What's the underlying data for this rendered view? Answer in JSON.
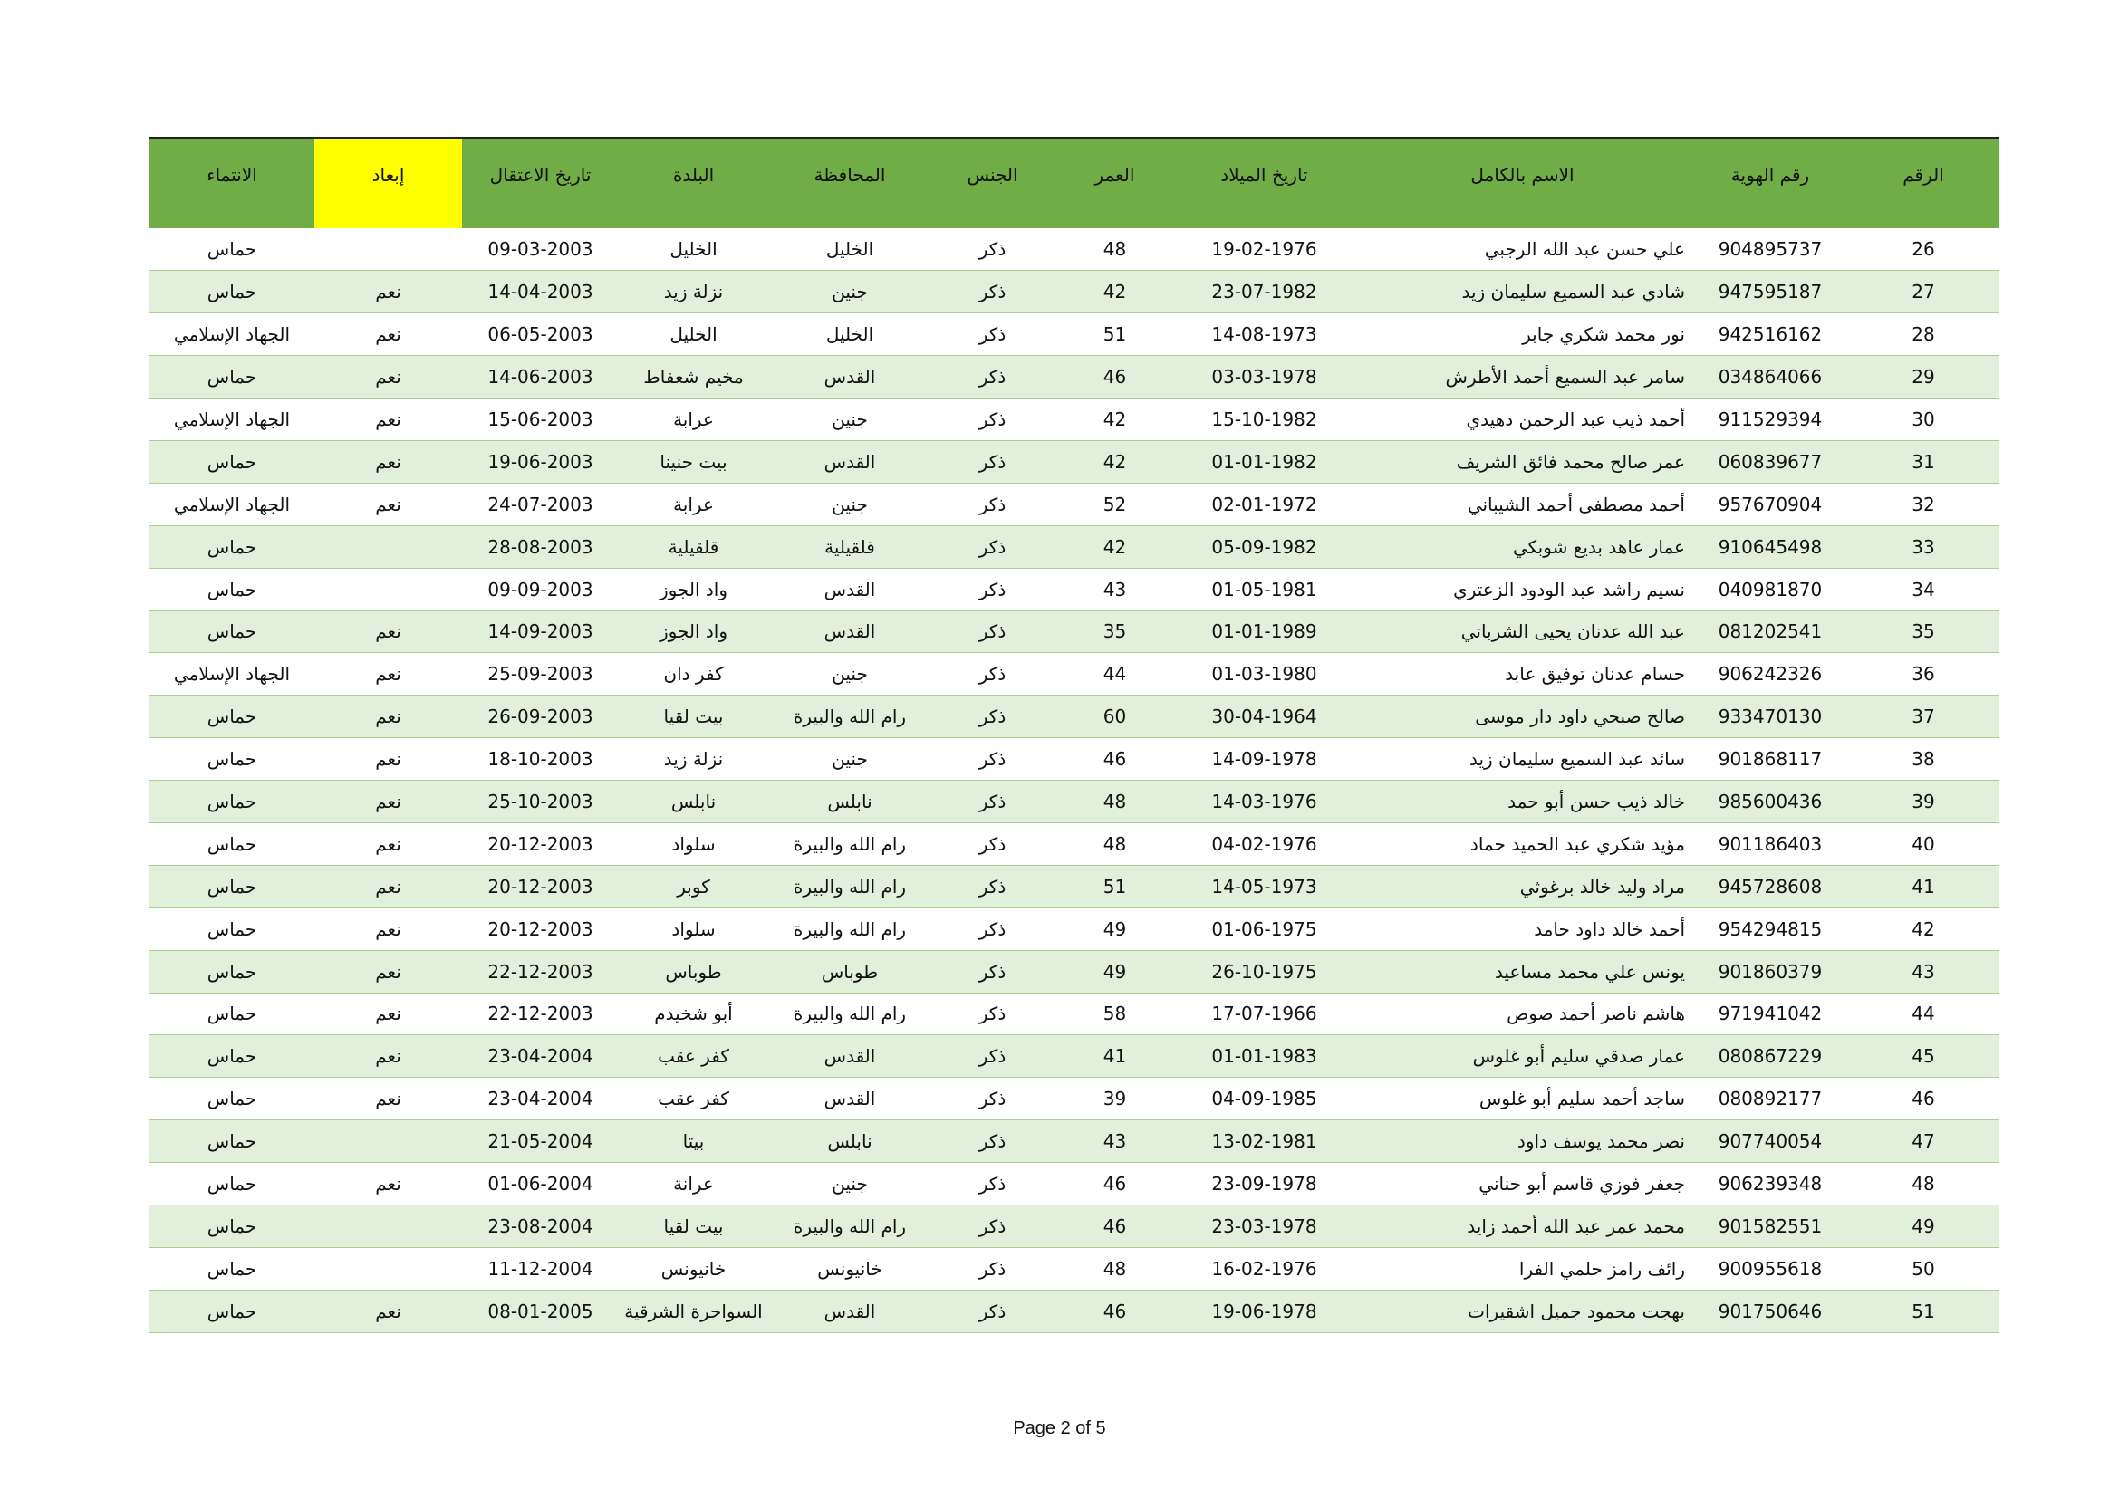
{
  "table": {
    "headers": [
      "الرقم",
      "رقم الهوية",
      "الاسم بالكامل",
      "تاريخ الميلاد",
      "العمر",
      "الجنس",
      "المحافظة",
      "البلدة",
      "تاريخ الاعتقال",
      "إبعاد",
      "الانتماء"
    ],
    "rows": [
      [
        26,
        "904895737",
        "علي حسن عبد الله الرجبي",
        "19-02-1976",
        48,
        "ذكر",
        "الخليل",
        "الخليل",
        "09-03-2003",
        null,
        "حماس"
      ],
      [
        27,
        "947595187",
        "شادي عبد السميع سليمان زيد",
        "23-07-1982",
        42,
        "ذكر",
        "جنين",
        "نزلة زيد",
        "14-04-2003",
        "نعم",
        "حماس"
      ],
      [
        28,
        "942516162",
        "نور محمد شكري جابر",
        "14-08-1973",
        51,
        "ذكر",
        "الخليل",
        "الخليل",
        "06-05-2003",
        "نعم",
        "الجهاد الإسلامي"
      ],
      [
        29,
        "034864066",
        "سامر عبد السميع أحمد الأطرش",
        "03-03-1978",
        46,
        "ذكر",
        "القدس",
        "مخيم شعفاط",
        "14-06-2003",
        "نعم",
        "حماس"
      ],
      [
        30,
        "911529394",
        "أحمد ذيب عبد الرحمن دهيدي",
        "15-10-1982",
        42,
        "ذكر",
        "جنين",
        "عرابة",
        "15-06-2003",
        "نعم",
        "الجهاد الإسلامي"
      ],
      [
        31,
        "060839677",
        "عمر صالح محمد فائق الشريف",
        "01-01-1982",
        42,
        "ذكر",
        "القدس",
        "بيت حنينا",
        "19-06-2003",
        "نعم",
        "حماس"
      ],
      [
        32,
        "957670904",
        "أحمد مصطفى أحمد الشيباني",
        "02-01-1972",
        52,
        "ذكر",
        "جنين",
        "عرابة",
        "24-07-2003",
        "نعم",
        "الجهاد الإسلامي"
      ],
      [
        33,
        "910645498",
        "عمار عاهد بديع شوبكي",
        "05-09-1982",
        42,
        "ذكر",
        "قلقيلية",
        "قلقيلية",
        "28-08-2003",
        null,
        "حماس"
      ],
      [
        34,
        "040981870",
        "نسيم راشد عبد الودود الزعتري",
        "01-05-1981",
        43,
        "ذكر",
        "القدس",
        "واد الجوز",
        "09-09-2003",
        null,
        "حماس"
      ],
      [
        35,
        "081202541",
        "عبد الله عدنان يحيى الشرباتي",
        "01-01-1989",
        35,
        "ذكر",
        "القدس",
        "واد الجوز",
        "14-09-2003",
        "نعم",
        "حماس"
      ],
      [
        36,
        "906242326",
        "حسام عدنان توفيق عابد",
        "01-03-1980",
        44,
        "ذكر",
        "جنين",
        "كفر دان",
        "25-09-2003",
        "نعم",
        "الجهاد الإسلامي"
      ],
      [
        37,
        "933470130",
        "صالح صبحي داود دار موسى",
        "30-04-1964",
        60,
        "ذكر",
        "رام الله والبيرة",
        "بيت لقيا",
        "26-09-2003",
        "نعم",
        "حماس"
      ],
      [
        38,
        "901868117",
        "سائد عبد السميع سليمان زيد",
        "14-09-1978",
        46,
        "ذكر",
        "جنين",
        "نزلة زيد",
        "18-10-2003",
        "نعم",
        "حماس"
      ],
      [
        39,
        "985600436",
        "خالد ذيب حسن أبو حمد",
        "14-03-1976",
        48,
        "ذكر",
        "نابلس",
        "نابلس",
        "25-10-2003",
        "نعم",
        "حماس"
      ],
      [
        40,
        "901186403",
        "مؤيد شكري عبد الحميد حماد",
        "04-02-1976",
        48,
        "ذكر",
        "رام الله والبيرة",
        "سلواد",
        "20-12-2003",
        "نعم",
        "حماس"
      ],
      [
        41,
        "945728608",
        "مراد وليد خالد برغوثي",
        "14-05-1973",
        51,
        "ذكر",
        "رام الله والبيرة",
        "كوبر",
        "20-12-2003",
        "نعم",
        "حماس"
      ],
      [
        42,
        "954294815",
        "أحمد خالد داود حامد",
        "01-06-1975",
        49,
        "ذكر",
        "رام الله والبيرة",
        "سلواد",
        "20-12-2003",
        "نعم",
        "حماس"
      ],
      [
        43,
        "901860379",
        "يونس علي محمد مساعيد",
        "26-10-1975",
        49,
        "ذكر",
        "طوباس",
        "طوباس",
        "22-12-2003",
        "نعم",
        "حماس"
      ],
      [
        44,
        "971941042",
        "هاشم ناصر أحمد صوص",
        "17-07-1966",
        58,
        "ذكر",
        "رام الله والبيرة",
        "أبو شخيدم",
        "22-12-2003",
        "نعم",
        "حماس"
      ],
      [
        45,
        "080867229",
        "عمار صدقي سليم أبو غلوس",
        "01-01-1983",
        41,
        "ذكر",
        "القدس",
        "كفر عقب",
        "23-04-2004",
        "نعم",
        "حماس"
      ],
      [
        46,
        "080892177",
        "ساجد أحمد سليم أبو غلوس",
        "04-09-1985",
        39,
        "ذكر",
        "القدس",
        "كفر عقب",
        "23-04-2004",
        "نعم",
        "حماس"
      ],
      [
        47,
        "907740054",
        "نصر محمد يوسف داود",
        "13-02-1981",
        43,
        "ذكر",
        "نابلس",
        "بيتا",
        "21-05-2004",
        null,
        "حماس"
      ],
      [
        48,
        "906239348",
        "جعفر فوزي قاسم أبو حناني",
        "23-09-1978",
        46,
        "ذكر",
        "جنين",
        "عرانة",
        "01-06-2004",
        "نعم",
        "حماس"
      ],
      [
        49,
        "901582551",
        "محمد عمر عبد الله أحمد زايد",
        "23-03-1978",
        46,
        "ذكر",
        "رام الله والبيرة",
        "بيت لقيا",
        "23-08-2004",
        null,
        "حماس"
      ],
      [
        50,
        "900955618",
        "رائف رامز حلمي الفرا",
        "16-02-1976",
        48,
        "ذكر",
        "خانيونس",
        "خانيونس",
        "11-12-2004",
        null,
        "حماس"
      ],
      [
        51,
        "901750646",
        "بهجت محمود جميل اشقيرات",
        "19-06-1978",
        46,
        "ذكر",
        "القدس",
        "السواحرة الشرقية",
        "08-01-2005",
        "نعم",
        "حماس"
      ]
    ]
  },
  "footer": "Page 2 of 5"
}
